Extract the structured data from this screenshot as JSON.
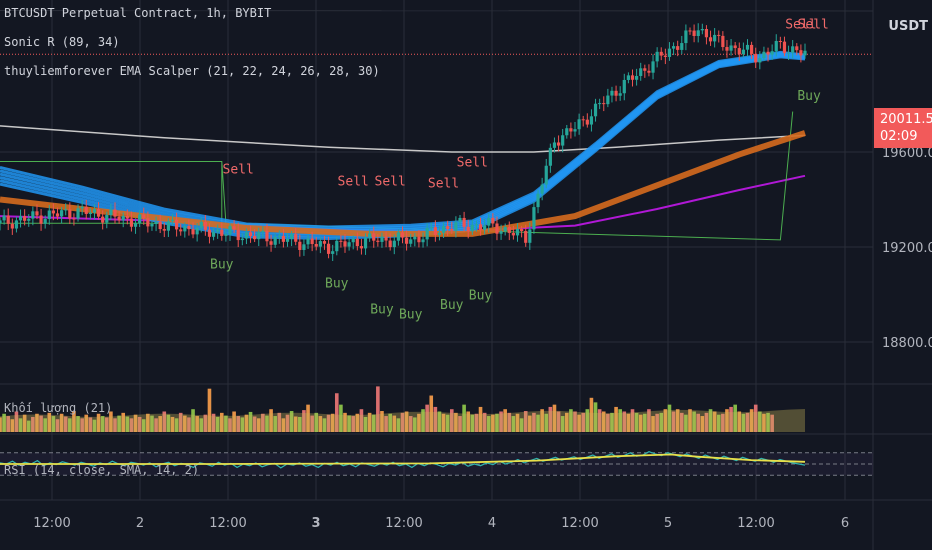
{
  "header": {
    "symbol_line": "BTCUSDT Perpetual Contract, 1h, BYBIT",
    "indicator_1": "Sonic R (89, 34)",
    "indicator_2": "thuyliemforever EMA Scalper (21, 22, 24, 26, 28, 30)",
    "currency": "USDT"
  },
  "last_price": {
    "value": "20011.5",
    "countdown": "02:09",
    "color": "#f25a5a"
  },
  "volume_pane_label": "Khối lượng (21)",
  "rsi_pane_label": "RSI (14, close, SMA, 14, 2)",
  "chart_data": {
    "type": "line",
    "title": "BTCUSDT Perpetual Contract, 1h, BYBIT",
    "price_ticks": [
      "19600.0",
      "19200.0",
      "18800.0"
    ],
    "price_range": [
      18640,
      20240
    ],
    "time_ticks": [
      {
        "label": "12:00",
        "bold": false
      },
      {
        "label": "2",
        "bold": false
      },
      {
        "label": "12:00",
        "bold": false
      },
      {
        "label": "3",
        "bold": true
      },
      {
        "label": "12:00",
        "bold": false
      },
      {
        "label": "4",
        "bold": false
      },
      {
        "label": "12:00",
        "bold": false
      },
      {
        "label": "5",
        "bold": false
      },
      {
        "label": "12:00",
        "bold": false
      },
      {
        "label": "6",
        "bold": false
      }
    ],
    "price_path": [
      [
        0,
        19300
      ],
      [
        10,
        19330
      ],
      [
        20,
        19350
      ],
      [
        30,
        19320
      ],
      [
        40,
        19290
      ],
      [
        50,
        19270
      ],
      [
        60,
        19250
      ],
      [
        70,
        19230
      ],
      [
        80,
        19200
      ],
      [
        90,
        19230
      ],
      [
        100,
        19230
      ],
      [
        110,
        19290
      ],
      [
        120,
        19290
      ],
      [
        128,
        19240
      ],
      [
        135,
        19650
      ],
      [
        140,
        19700
      ],
      [
        150,
        19860
      ],
      [
        160,
        19990
      ],
      [
        170,
        20120
      ],
      [
        175,
        20060
      ],
      [
        180,
        20030
      ],
      [
        185,
        20000
      ],
      [
        190,
        20050
      ],
      [
        196,
        20011.5
      ]
    ],
    "ema_ribbon": [
      [
        0,
        19500
      ],
      [
        20,
        19420
      ],
      [
        40,
        19330
      ],
      [
        60,
        19270
      ],
      [
        80,
        19260
      ],
      [
        100,
        19270
      ],
      [
        115,
        19290
      ],
      [
        130,
        19410
      ],
      [
        145,
        19620
      ],
      [
        160,
        19840
      ],
      [
        175,
        19970
      ],
      [
        190,
        20010
      ],
      [
        196,
        20000
      ]
    ],
    "ema_ribbon_width": [
      130,
      100
    ],
    "sonic_ema34": [
      [
        0,
        19400
      ],
      [
        30,
        19340
      ],
      [
        60,
        19280
      ],
      [
        90,
        19255
      ],
      [
        115,
        19255
      ],
      [
        140,
        19330
      ],
      [
        160,
        19460
      ],
      [
        180,
        19590
      ],
      [
        196,
        19680
      ]
    ],
    "ema89_purple": [
      [
        0,
        19330
      ],
      [
        40,
        19310
      ],
      [
        80,
        19275
      ],
      [
        110,
        19265
      ],
      [
        140,
        19290
      ],
      [
        160,
        19360
      ],
      [
        180,
        19440
      ],
      [
        196,
        19500
      ]
    ],
    "ma_white": [
      [
        0,
        19710
      ],
      [
        40,
        19660
      ],
      [
        80,
        19620
      ],
      [
        110,
        19600
      ],
      [
        130,
        19600
      ],
      [
        150,
        19620
      ],
      [
        175,
        19650
      ],
      [
        196,
        19670
      ]
    ],
    "green_envelope": [
      [
        0,
        19300
      ],
      [
        54,
        19300
      ],
      [
        54,
        19560
      ],
      [
        0,
        19560
      ],
      [
        54,
        19560
      ],
      [
        55,
        19300
      ],
      [
        190,
        19230
      ],
      [
        193,
        19770
      ]
    ],
    "signals": [
      {
        "type": "Buy",
        "x": 54,
        "price": 19110
      },
      {
        "type": "Sell",
        "x": 58,
        "price": 19510
      },
      {
        "type": "Sell",
        "x": 86,
        "price": 19460
      },
      {
        "type": "Sell",
        "x": 95,
        "price": 19460
      },
      {
        "type": "Sell",
        "x": 108,
        "price": 19450
      },
      {
        "type": "Sell",
        "x": 115,
        "price": 19540
      },
      {
        "type": "Buy",
        "x": 82,
        "price": 19030
      },
      {
        "type": "Buy",
        "x": 93,
        "price": 18920
      },
      {
        "type": "Buy",
        "x": 100,
        "price": 18900
      },
      {
        "type": "Buy",
        "x": 110,
        "price": 18940
      },
      {
        "type": "Buy",
        "x": 117,
        "price": 18980
      },
      {
        "type": "Sell",
        "x": 195,
        "price": 20120
      },
      {
        "type": "Sell",
        "x": 198,
        "price": 20120
      },
      {
        "type": "Buy",
        "x": 197,
        "price": 19820
      }
    ],
    "volume": [
      0.32,
      0.4,
      0.35,
      0.28,
      0.45,
      0.3,
      0.38,
      0.25,
      0.33,
      0.4,
      0.36,
      0.3,
      0.42,
      0.35,
      0.28,
      0.4,
      0.34,
      0.3,
      0.46,
      0.35,
      0.3,
      0.38,
      0.32,
      0.27,
      0.4,
      0.35,
      0.32,
      0.45,
      0.3,
      0.36,
      0.42,
      0.34,
      0.3,
      0.38,
      0.33,
      0.28,
      0.4,
      0.36,
      0.3,
      0.35,
      0.45,
      0.38,
      0.33,
      0.3,
      0.42,
      0.36,
      0.32,
      0.5,
      0.35,
      0.3,
      0.38,
      0.95,
      0.4,
      0.33,
      0.42,
      0.36,
      0.3,
      0.45,
      0.35,
      0.32,
      0.38,
      0.44,
      0.34,
      0.3,
      0.4,
      0.36,
      0.5,
      0.35,
      0.42,
      0.3,
      0.38,
      0.46,
      0.34,
      0.33,
      0.48,
      0.6,
      0.36,
      0.42,
      0.35,
      0.3,
      0.38,
      0.4,
      0.85,
      0.6,
      0.42,
      0.36,
      0.35,
      0.4,
      0.5,
      0.33,
      0.42,
      0.38,
      1.0,
      0.46,
      0.35,
      0.4,
      0.36,
      0.3,
      0.42,
      0.45,
      0.35,
      0.32,
      0.4,
      0.5,
      0.6,
      0.8,
      0.55,
      0.45,
      0.4,
      0.38,
      0.5,
      0.42,
      0.35,
      0.6,
      0.45,
      0.38,
      0.4,
      0.55,
      0.42,
      0.35,
      0.38,
      0.4,
      0.45,
      0.5,
      0.42,
      0.35,
      0.4,
      0.3,
      0.46,
      0.36,
      0.42,
      0.38,
      0.5,
      0.4,
      0.55,
      0.6,
      0.45,
      0.35,
      0.42,
      0.5,
      0.45,
      0.38,
      0.42,
      0.5,
      0.75,
      0.65,
      0.5,
      0.45,
      0.4,
      0.42,
      0.55,
      0.5,
      0.45,
      0.4,
      0.5,
      0.42,
      0.38,
      0.4,
      0.5,
      0.35,
      0.4,
      0.42,
      0.5,
      0.6,
      0.45,
      0.5,
      0.42,
      0.38,
      0.5,
      0.45,
      0.4,
      0.35,
      0.42,
      0.5,
      0.45,
      0.38,
      0.4,
      0.5,
      0.55,
      0.6,
      0.45,
      0.4,
      0.42,
      0.5,
      0.6,
      0.45,
      0.4,
      0.42,
      0.38
    ],
    "volume_ma_color": "#c8b45a",
    "rsi": [
      52,
      50,
      55,
      48,
      53,
      50,
      56,
      47,
      52,
      49,
      54,
      51,
      48,
      53,
      50,
      46,
      52,
      49,
      55,
      50,
      47,
      53,
      51,
      48,
      52,
      45,
      50,
      53,
      47,
      51,
      49,
      44,
      52,
      50,
      46,
      53,
      48,
      51,
      44,
      50,
      47,
      52,
      45,
      49,
      51,
      43,
      50,
      48,
      52,
      46,
      49,
      44,
      51,
      48,
      53,
      47,
      50,
      45,
      52,
      49,
      46,
      51,
      48,
      53,
      47,
      50,
      44,
      51,
      47,
      52,
      49,
      45,
      51,
      48,
      53,
      46,
      50,
      47,
      52,
      49,
      55,
      50,
      53,
      58,
      52,
      56,
      60,
      55,
      58,
      62,
      57,
      60,
      63,
      58,
      62,
      66,
      60,
      64,
      68,
      62,
      65,
      70,
      64,
      66,
      72,
      68,
      65,
      70,
      67,
      63,
      68,
      64,
      60,
      66,
      62,
      58,
      64,
      60,
      56,
      62,
      58,
      55,
      60,
      57,
      53,
      58,
      55,
      52,
      50,
      48
    ],
    "rsi_ma_points": [
      [
        0,
        50
      ],
      [
        40,
        50
      ],
      [
        80,
        51
      ],
      [
        100,
        56
      ],
      [
        115,
        64
      ],
      [
        125,
        67
      ],
      [
        130,
        63
      ],
      [
        140,
        57
      ],
      [
        150,
        54
      ]
    ],
    "rsi_band": [
      30,
      70
    ],
    "colors": {
      "background": "#131722",
      "grid": "#2a2e39",
      "up": "#26a69a",
      "down": "#ef5350",
      "ema_ribbon": "#2196f3",
      "sonic": "#d66a1e",
      "purple": "#b018d6",
      "white_ma": "#c8c8c8",
      "envelope": "#4caf50",
      "rsi": "#2fb3b0",
      "rsi_ma": "#e8e04a",
      "buy_text": "#6ea85a",
      "sell_text": "#f06a6a"
    }
  }
}
